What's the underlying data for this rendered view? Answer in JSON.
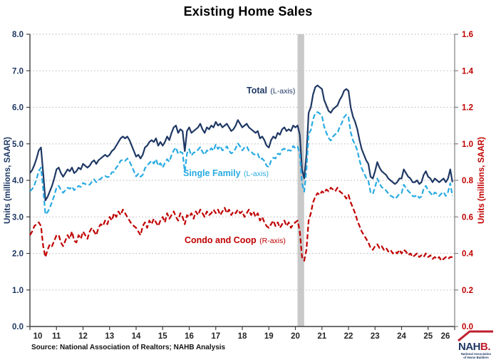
{
  "title": "Existing Home Sales",
  "source": "Source: National Association of Realtors; NAHB Analysis",
  "logo": {
    "text_navy": "NAH",
    "text_red": "B.",
    "tagline_line1": "National Association",
    "tagline_line2": "of Home Builders"
  },
  "colors": {
    "navy": "#1F3864",
    "cyan": "#29ABE2",
    "red": "#C00000",
    "grid": "#C0C0C0",
    "band": "#C9C9C9",
    "axis_dark": "#404040",
    "axis_gray": "#808080",
    "x_label": "#262626",
    "logo_red": "#BE1E2D"
  },
  "chart_data": {
    "type": "line",
    "title": "Existing Home Sales",
    "frequency": "monthly",
    "x_min": 2010,
    "x_max": 2026,
    "grid": true,
    "x_tick_labels": [
      "10",
      "11",
      "12",
      "13",
      "14",
      "15",
      "16",
      "17",
      "18",
      "19",
      "20",
      "21",
      "22",
      "23",
      "24",
      "25",
      "26"
    ],
    "left_axis": {
      "label": "Units (millions, SAAR)",
      "min": 0,
      "max": 8,
      "tick_step": 1,
      "tick_labels": [
        "0.0",
        "1.0",
        "2.0",
        "3.0",
        "4.0",
        "5.0",
        "6.0",
        "7.0",
        "8.0"
      ]
    },
    "right_axis": {
      "label": "Units (millions, SAAR)",
      "min": 0,
      "max": 1.6,
      "tick_step": 0.2,
      "tick_labels": [
        "0.0",
        "0.2",
        "0.4",
        "0.6",
        "0.8",
        "1.0",
        "1.2",
        "1.4",
        "1.6"
      ]
    },
    "recession_band": {
      "x_from": 2020.08,
      "x_to": 2020.33
    },
    "series": [
      {
        "id": "total",
        "name": "Total",
        "label": "Total",
        "label_note": "(L-axis)",
        "axis": "left",
        "line": "solid",
        "color_key": "navy",
        "values": [
          4.2,
          4.28,
          4.42,
          4.6,
          4.82,
          4.9,
          4.2,
          3.45,
          3.55,
          3.7,
          3.85,
          4.05,
          4.3,
          4.35,
          4.2,
          4.1,
          4.2,
          4.3,
          4.25,
          4.35,
          4.2,
          4.25,
          4.35,
          4.3,
          4.45,
          4.4,
          4.35,
          4.4,
          4.5,
          4.55,
          4.45,
          4.55,
          4.6,
          4.65,
          4.7,
          4.65,
          4.7,
          4.8,
          4.85,
          4.95,
          5.05,
          5.15,
          5.2,
          5.15,
          5.2,
          5.1,
          4.95,
          4.8,
          4.65,
          4.7,
          4.6,
          4.7,
          4.9,
          4.95,
          5.05,
          5.1,
          5.05,
          5.15,
          4.95,
          5.05,
          4.95,
          5.05,
          5.2,
          5.1,
          5.3,
          5.45,
          5.5,
          5.3,
          5.4,
          5.35,
          4.8,
          5.35,
          5.45,
          5.3,
          5.35,
          5.4,
          5.45,
          5.55,
          5.4,
          5.3,
          5.45,
          5.4,
          5.5,
          5.45,
          5.6,
          5.5,
          5.55,
          5.45,
          5.5,
          5.55,
          5.45,
          5.35,
          5.4,
          5.5,
          5.65,
          5.55,
          5.45,
          5.5,
          5.55,
          5.45,
          5.4,
          5.35,
          5.3,
          5.35,
          5.15,
          5.2,
          5.1,
          4.95,
          4.9,
          5.1,
          5.2,
          5.15,
          5.3,
          5.25,
          5.4,
          5.45,
          5.35,
          5.4,
          5.35,
          5.5,
          5.45,
          5.5,
          5.25,
          4.3,
          4.05,
          4.7,
          5.85,
          6.0,
          6.35,
          6.55,
          6.6,
          6.55,
          6.5,
          6.2,
          6.05,
          5.9,
          5.85,
          5.95,
          6.0,
          6.05,
          6.2,
          6.3,
          6.45,
          6.5,
          6.45,
          6.0,
          5.75,
          5.6,
          5.4,
          5.1,
          4.85,
          4.7,
          4.55,
          4.45,
          4.1,
          4.05,
          4.25,
          4.5,
          4.35,
          4.25,
          4.2,
          4.15,
          4.05,
          4.0,
          3.95,
          3.9,
          3.95,
          4.05,
          4.05,
          4.3,
          4.2,
          4.1,
          4.05,
          3.95,
          3.95,
          4.0,
          3.9,
          3.95,
          4.15,
          4.25,
          4.1,
          4.05,
          3.95,
          4.05,
          4.0,
          3.95,
          4.0,
          4.05,
          3.95,
          4.05,
          4.3,
          3.95
        ]
      },
      {
        "id": "single-family",
        "name": "Single Family",
        "label": "Single Family",
        "label_note": "(L-axis)",
        "axis": "left",
        "line": "dashed",
        "color_key": "cyan",
        "values": [
          3.7,
          3.76,
          3.87,
          4.04,
          4.25,
          4.35,
          3.76,
          3.07,
          3.13,
          3.25,
          3.41,
          3.58,
          3.8,
          3.85,
          3.74,
          3.66,
          3.73,
          3.8,
          3.77,
          3.83,
          3.73,
          3.79,
          3.85,
          3.82,
          3.93,
          3.9,
          3.87,
          3.88,
          3.96,
          4.03,
          3.95,
          4.01,
          4.04,
          4.1,
          4.12,
          4.09,
          4.1,
          4.22,
          4.23,
          4.35,
          4.42,
          4.54,
          4.56,
          4.53,
          4.6,
          4.52,
          4.39,
          4.25,
          4.11,
          4.18,
          4.1,
          4.15,
          4.33,
          4.41,
          4.47,
          4.54,
          4.46,
          4.58,
          4.4,
          4.47,
          4.35,
          4.48,
          4.58,
          4.51,
          4.69,
          4.82,
          4.9,
          4.72,
          4.78,
          4.75,
          4.24,
          4.74,
          4.85,
          4.68,
          4.76,
          4.77,
          4.84,
          4.91,
          4.78,
          4.7,
          4.82,
          4.79,
          4.88,
          4.81,
          4.98,
          4.86,
          4.94,
          4.82,
          4.85,
          4.93,
          4.81,
          4.74,
          4.77,
          4.88,
          5.01,
          4.93,
          4.82,
          4.9,
          4.93,
          4.81,
          4.79,
          4.72,
          4.7,
          4.73,
          4.57,
          4.6,
          4.53,
          4.4,
          4.36,
          4.54,
          4.62,
          4.6,
          4.73,
          4.71,
          4.84,
          4.87,
          4.8,
          4.83,
          4.81,
          4.94,
          4.88,
          4.92,
          4.73,
          3.92,
          3.69,
          4.28,
          5.27,
          5.38,
          5.67,
          5.84,
          5.87,
          5.83,
          5.76,
          5.47,
          5.3,
          5.16,
          5.09,
          5.2,
          5.26,
          5.29,
          5.46,
          5.57,
          5.73,
          5.8,
          5.73,
          5.32,
          5.1,
          4.98,
          4.82,
          4.55,
          4.33,
          4.2,
          4.07,
          3.99,
          3.67,
          3.63,
          3.81,
          4.05,
          3.92,
          3.81,
          3.78,
          3.72,
          3.64,
          3.58,
          3.55,
          3.49,
          3.55,
          3.63,
          3.65,
          3.88,
          3.79,
          3.71,
          3.65,
          3.57,
          3.56,
          3.6,
          3.52,
          3.56,
          3.77,
          3.85,
          3.72,
          3.66,
          3.58,
          3.67,
          3.63,
          3.57,
          3.64,
          3.68,
          3.57,
          3.68,
          3.92,
          3.57
        ]
      },
      {
        "id": "condo-coop",
        "name": "Condo and Coop",
        "label": "Condo and Coop",
        "label_note": "(R-axis)",
        "axis": "right",
        "line": "dashed",
        "color_key": "red",
        "values": [
          0.5,
          0.52,
          0.55,
          0.56,
          0.57,
          0.55,
          0.44,
          0.38,
          0.42,
          0.45,
          0.44,
          0.47,
          0.5,
          0.5,
          0.46,
          0.44,
          0.47,
          0.5,
          0.48,
          0.52,
          0.47,
          0.46,
          0.5,
          0.48,
          0.52,
          0.5,
          0.48,
          0.52,
          0.54,
          0.52,
          0.5,
          0.54,
          0.56,
          0.55,
          0.58,
          0.56,
          0.6,
          0.58,
          0.62,
          0.6,
          0.63,
          0.61,
          0.64,
          0.62,
          0.6,
          0.58,
          0.56,
          0.55,
          0.54,
          0.52,
          0.5,
          0.55,
          0.57,
          0.54,
          0.58,
          0.56,
          0.59,
          0.57,
          0.55,
          0.58,
          0.6,
          0.57,
          0.62,
          0.59,
          0.61,
          0.63,
          0.6,
          0.58,
          0.62,
          0.6,
          0.56,
          0.61,
          0.6,
          0.62,
          0.59,
          0.63,
          0.61,
          0.64,
          0.62,
          0.6,
          0.63,
          0.61,
          0.62,
          0.64,
          0.62,
          0.64,
          0.61,
          0.63,
          0.65,
          0.62,
          0.64,
          0.61,
          0.63,
          0.62,
          0.64,
          0.62,
          0.63,
          0.6,
          0.62,
          0.64,
          0.61,
          0.63,
          0.6,
          0.62,
          0.58,
          0.6,
          0.57,
          0.55,
          0.54,
          0.56,
          0.58,
          0.55,
          0.57,
          0.54,
          0.56,
          0.58,
          0.55,
          0.57,
          0.54,
          0.56,
          0.57,
          0.58,
          0.52,
          0.38,
          0.36,
          0.42,
          0.58,
          0.62,
          0.68,
          0.71,
          0.73,
          0.72,
          0.74,
          0.73,
          0.75,
          0.74,
          0.76,
          0.75,
          0.74,
          0.76,
          0.74,
          0.73,
          0.72,
          0.7,
          0.72,
          0.68,
          0.65,
          0.62,
          0.58,
          0.55,
          0.52,
          0.5,
          0.48,
          0.46,
          0.43,
          0.42,
          0.44,
          0.45,
          0.43,
          0.44,
          0.42,
          0.43,
          0.41,
          0.42,
          0.4,
          0.41,
          0.4,
          0.42,
          0.4,
          0.42,
          0.41,
          0.39,
          0.4,
          0.38,
          0.39,
          0.4,
          0.38,
          0.39,
          0.38,
          0.4,
          0.38,
          0.39,
          0.37,
          0.38,
          0.37,
          0.38,
          0.36,
          0.37,
          0.38,
          0.37,
          0.38,
          0.38
        ]
      }
    ]
  }
}
